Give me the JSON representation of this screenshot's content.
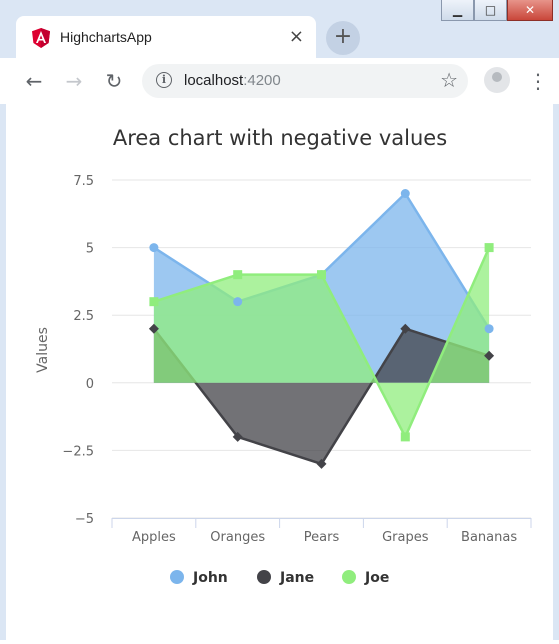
{
  "window": {
    "tab_title": "HighchartsApp",
    "close_symbol": "×",
    "new_tab_symbol": "+",
    "minimize_symbol": "▁",
    "maximize_symbol": "□",
    "window_close_symbol": "✕"
  },
  "toolbar": {
    "back_symbol": "←",
    "forward_symbol": "→",
    "reload_symbol": "↻",
    "info_symbol": "i",
    "url_host": "localhost",
    "url_port": ":4200",
    "star_symbol": "☆",
    "menu_symbol": "⋮"
  },
  "icons": {
    "tab": "angular-logo-icon",
    "back": "arrow-left-icon",
    "forward": "arrow-right-icon",
    "reload": "reload-icon",
    "info": "info-icon",
    "star": "star-icon",
    "profile": "profile-icon",
    "menu": "kebab-menu-icon"
  },
  "colors": {
    "chrome_bg": "#dbe6f4",
    "angular_red": "#dd0031"
  },
  "chart_data": {
    "type": "area",
    "title": "Area chart with negative values",
    "xlabel": "",
    "ylabel": "Values",
    "categories": [
      "Apples",
      "Oranges",
      "Pears",
      "Grapes",
      "Bananas"
    ],
    "ylim": [
      -5,
      7.5
    ],
    "yticks": [
      7.5,
      5,
      2.5,
      0,
      -2.5,
      -5
    ],
    "ytick_labels": [
      "7.5",
      "5",
      "2.5",
      "0",
      "−2.5",
      "−5"
    ],
    "grid": true,
    "legend_position": "bottom-center",
    "series": [
      {
        "name": "John",
        "values": [
          5,
          3,
          4,
          7,
          2
        ],
        "color": "#7cb5ec",
        "marker": "circle"
      },
      {
        "name": "Jane",
        "values": [
          2,
          -2,
          -3,
          2,
          1
        ],
        "color": "#434348",
        "marker": "diamond"
      },
      {
        "name": "Joe",
        "values": [
          3,
          4,
          4,
          -2,
          5
        ],
        "color": "#90ed7d",
        "marker": "square"
      }
    ]
  }
}
